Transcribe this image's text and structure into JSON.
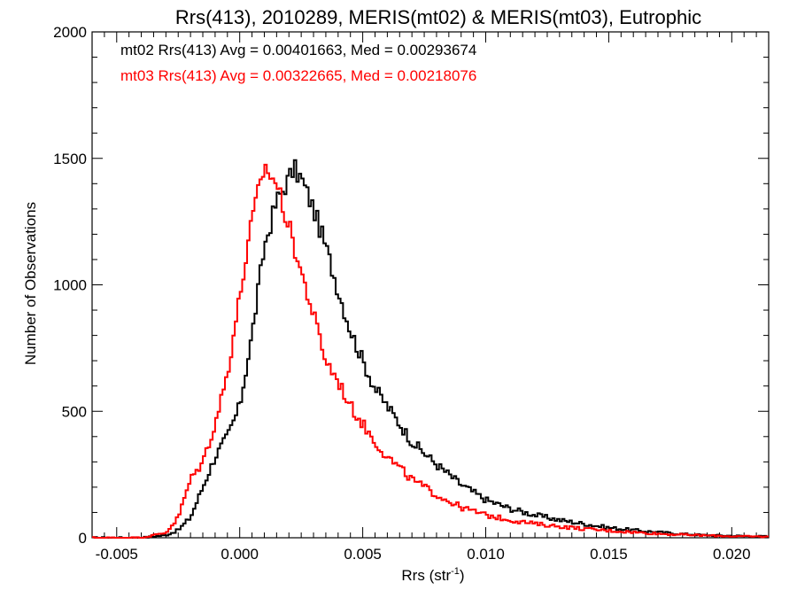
{
  "chart_data": {
    "type": "line",
    "title": "Rrs(413), 2010289, MERIS(mt02) & MERIS(mt03), Eutrophic",
    "xlabel": "Rrs (str",
    "xlabel_sup": "-1",
    "xlabel_end": ")",
    "ylabel": "Number of Observations",
    "xlim": [
      -0.006,
      0.0215
    ],
    "ylim": [
      0,
      2000
    ],
    "x_ticks": [
      -0.005,
      0.0,
      0.005,
      0.01,
      0.015,
      0.02
    ],
    "x_tick_labels": [
      "-0.005",
      "0.000",
      "0.005",
      "0.010",
      "0.015",
      "0.020"
    ],
    "y_ticks": [
      0,
      500,
      1000,
      1500,
      2000
    ],
    "y_tick_labels": [
      "0",
      "500",
      "1000",
      "1500",
      "2000"
    ],
    "grid": false,
    "legend_position": "top-left",
    "series": [
      {
        "name": "mt02",
        "label": "mt02 Rrs(413) Avg = 0.00401663, Med = 0.00293674",
        "color": "#000000",
        "step": "histogram",
        "x": [
          -0.006,
          -0.004,
          -0.003,
          -0.0025,
          -0.002,
          -0.0015,
          -0.001,
          -0.0005,
          0.0,
          0.0005,
          0.001,
          0.0015,
          0.002,
          0.0022,
          0.0025,
          0.003,
          0.0035,
          0.004,
          0.0045,
          0.005,
          0.0055,
          0.006,
          0.007,
          0.008,
          0.009,
          0.01,
          0.011,
          0.012,
          0.013,
          0.014,
          0.015,
          0.016,
          0.017,
          0.018,
          0.019,
          0.02,
          0.0215
        ],
        "y": [
          0,
          0,
          10,
          30,
          80,
          200,
          320,
          400,
          520,
          800,
          1150,
          1330,
          1420,
          1460,
          1420,
          1300,
          1150,
          980,
          820,
          700,
          590,
          520,
          380,
          290,
          210,
          150,
          115,
          90,
          70,
          55,
          40,
          30,
          22,
          15,
          10,
          8,
          5
        ]
      },
      {
        "name": "mt03",
        "label": "mt03 Rrs(413) Avg = 0.00322665, Med = 0.00218076",
        "color": "#ff0000",
        "step": "histogram",
        "x": [
          -0.006,
          -0.004,
          -0.003,
          -0.0025,
          -0.002,
          -0.0015,
          -0.001,
          -0.0005,
          0.0,
          0.0005,
          0.001,
          0.0015,
          0.002,
          0.0025,
          0.003,
          0.0035,
          0.004,
          0.0045,
          0.005,
          0.0055,
          0.006,
          0.007,
          0.008,
          0.009,
          0.01,
          0.011,
          0.012,
          0.013,
          0.014,
          0.015,
          0.016,
          0.017,
          0.018,
          0.019,
          0.02,
          0.0215
        ],
        "y": [
          0,
          0,
          20,
          80,
          230,
          300,
          450,
          650,
          950,
          1250,
          1470,
          1400,
          1230,
          1050,
          880,
          700,
          620,
          520,
          450,
          380,
          320,
          230,
          170,
          120,
          90,
          70,
          55,
          45,
          35,
          28,
          22,
          16,
          12,
          9,
          6,
          4
        ]
      }
    ]
  }
}
